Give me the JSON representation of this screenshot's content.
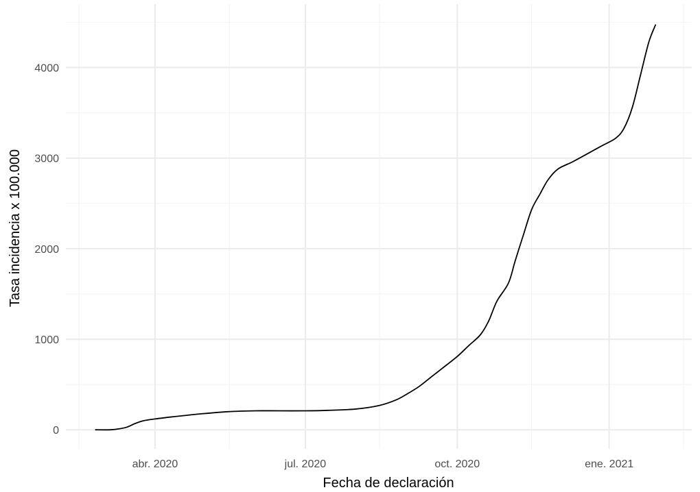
{
  "chart_data": {
    "type": "line",
    "title": "",
    "xlabel": "Fecha de declaración",
    "ylabel": "Tasa incidencia x 100.000",
    "x_type": "date",
    "xlim": [
      "2020-02-07",
      "2021-02-20"
    ],
    "ylim": [
      -210,
      4700
    ],
    "x_ticks": [
      {
        "date": "2020-04-01",
        "label": "abr. 2020"
      },
      {
        "date": "2020-07-01",
        "label": "jul. 2020"
      },
      {
        "date": "2020-10-01",
        "label": "oct. 2020"
      },
      {
        "date": "2021-01-01",
        "label": "ene. 2021"
      }
    ],
    "x_minor_ticks": [
      "2020-02-15",
      "2020-05-16",
      "2020-08-15",
      "2020-11-15",
      "2021-02-15"
    ],
    "y_ticks": [
      {
        "value": 0,
        "label": "0"
      },
      {
        "value": 1000,
        "label": "1000"
      },
      {
        "value": 2000,
        "label": "2000"
      },
      {
        "value": 3000,
        "label": "3000"
      },
      {
        "value": 4000,
        "label": "4000"
      }
    ],
    "y_minor_ticks": [
      500,
      1500,
      2500,
      3500,
      4500
    ],
    "grid": true,
    "legend": "none",
    "series": [
      {
        "color": "#000000",
        "x": [
          "2020-02-25",
          "2020-03-05",
          "2020-03-10",
          "2020-03-15",
          "2020-03-20",
          "2020-03-25",
          "2020-04-01",
          "2020-04-10",
          "2020-04-20",
          "2020-05-01",
          "2020-05-15",
          "2020-06-01",
          "2020-06-15",
          "2020-07-01",
          "2020-07-15",
          "2020-08-01",
          "2020-08-15",
          "2020-08-25",
          "2020-09-01",
          "2020-09-08",
          "2020-09-15",
          "2020-09-22",
          "2020-10-01",
          "2020-10-08",
          "2020-10-15",
          "2020-10-20",
          "2020-10-25",
          "2020-11-01",
          "2020-11-05",
          "2020-11-10",
          "2020-11-15",
          "2020-11-20",
          "2020-11-25",
          "2020-12-01",
          "2020-12-10",
          "2020-12-20",
          "2020-12-28",
          "2021-01-05",
          "2021-01-10",
          "2021-01-15",
          "2021-01-20",
          "2021-01-25",
          "2021-01-29"
        ],
        "y": [
          0,
          0,
          10,
          30,
          70,
          100,
          120,
          140,
          160,
          180,
          200,
          210,
          210,
          210,
          215,
          230,
          270,
          330,
          400,
          480,
          580,
          680,
          810,
          930,
          1050,
          1200,
          1420,
          1620,
          1860,
          2150,
          2430,
          2600,
          2760,
          2880,
          2960,
          3060,
          3140,
          3220,
          3330,
          3560,
          3920,
          4280,
          4470
        ]
      }
    ]
  }
}
